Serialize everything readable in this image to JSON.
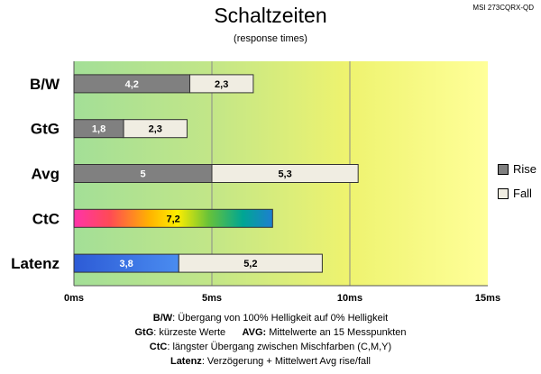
{
  "header": {
    "title": "Schaltzeiten",
    "subtitle": "(response times)",
    "model": "MSI 273CQRX-QD"
  },
  "legend": {
    "items": [
      {
        "label": "Rise",
        "color": "#808080"
      },
      {
        "label": "Fall",
        "color": "#f0ede2"
      }
    ]
  },
  "chart_data": {
    "type": "bar",
    "orientation": "horizontal",
    "stacked": true,
    "categories": [
      "B/W",
      "GtG",
      "Avg",
      "CtC",
      "Latenz"
    ],
    "series": [
      {
        "name": "Rise",
        "values": [
          4.2,
          1.8,
          5,
          null,
          null
        ]
      },
      {
        "name": "Fall",
        "values": [
          2.3,
          2.3,
          5.3,
          null,
          5.2
        ]
      }
    ],
    "ctc_value": 7.2,
    "latenz_delay": 3.8,
    "value_labels": {
      "rise": [
        "4,2",
        "1,8",
        "5",
        "",
        ""
      ],
      "fall": [
        "2,3",
        "2,3",
        "5,3",
        "",
        "5,2"
      ],
      "ctc": "7,2",
      "latenz": "3,8"
    },
    "x_ticks": [
      "0ms",
      "5ms",
      "10ms",
      "15ms"
    ],
    "xlim": [
      0,
      15
    ],
    "background_zones": [
      "#a3df97",
      "#d4ec7c",
      "#ffff99"
    ],
    "legend_position": "right"
  },
  "footnotes": [
    {
      "key": "B/W",
      "text": ":  Übergang von 100% Helligkeit auf 0% Helligkeit"
    },
    {
      "key": "GtG",
      "text": ": kürzeste  Werte",
      "key2": "AVG:",
      "text2": " Mittelwerte  an 15 Messpunkten"
    },
    {
      "key": "CtC",
      "text": ": längster Übergang zwischen Mischfarben (C,M,Y)"
    },
    {
      "key": "Latenz",
      "text": ": Verzögerung  + Mittelwert Avg rise/fall"
    }
  ]
}
